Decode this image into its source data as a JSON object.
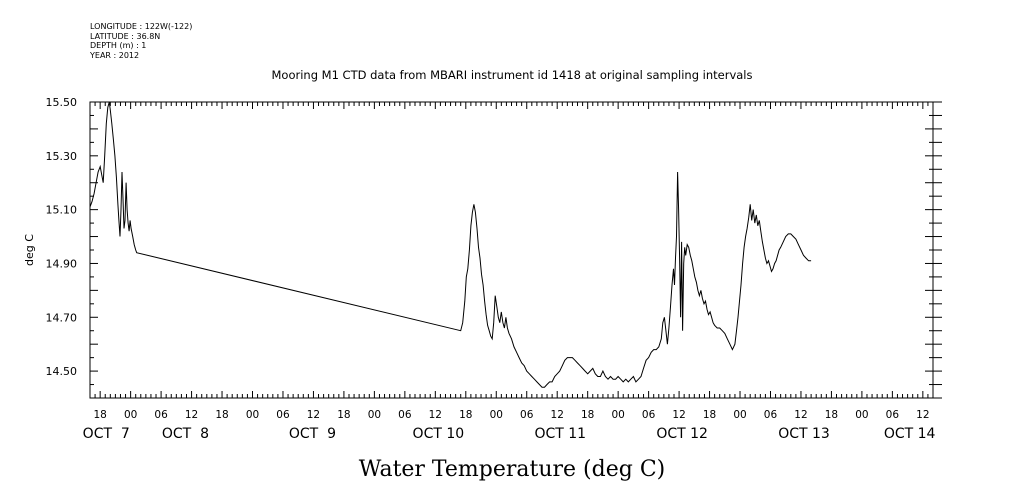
{
  "metadata": [
    {
      "key": "longitude",
      "text": "LONGITUDE : 122W(-122)"
    },
    {
      "key": "latitude",
      "text": "LATITUDE : 36.8N"
    },
    {
      "key": "depth",
      "text": "DEPTH (m) : 1"
    },
    {
      "key": "year",
      "text": "YEAR : 2012"
    }
  ],
  "chart_data": {
    "type": "line",
    "title": "Mooring M1 CTD data from MBARI instrument id 1418 at original sampling intervals",
    "xlabel": "Water Temperature (deg C)",
    "ylabel": "deg C",
    "ylim": [
      14.4,
      15.5
    ],
    "y_ticks": [
      {
        "value": 14.5,
        "label": "14.50"
      },
      {
        "value": 14.7,
        "label": "14.70"
      },
      {
        "value": 14.9,
        "label": "14.90"
      },
      {
        "value": 15.1,
        "label": "15.10"
      },
      {
        "value": 15.3,
        "label": "15.30"
      },
      {
        "value": 15.5,
        "label": "15.50"
      }
    ],
    "x_unit": "hours since Oct 7 2012 00:00",
    "xlim": [
      16,
      182
    ],
    "x_hour_ticks": [
      {
        "x": 18,
        "label": "18"
      },
      {
        "x": 24,
        "label": "00"
      },
      {
        "x": 30,
        "label": "06"
      },
      {
        "x": 36,
        "label": "12"
      },
      {
        "x": 42,
        "label": "18"
      },
      {
        "x": 48,
        "label": "00"
      },
      {
        "x": 54,
        "label": "06"
      },
      {
        "x": 60,
        "label": "12"
      },
      {
        "x": 66,
        "label": "18"
      },
      {
        "x": 72,
        "label": "00"
      },
      {
        "x": 78,
        "label": "06"
      },
      {
        "x": 84,
        "label": "12"
      },
      {
        "x": 90,
        "label": "18"
      },
      {
        "x": 96,
        "label": "00"
      },
      {
        "x": 102,
        "label": "06"
      },
      {
        "x": 108,
        "label": "12"
      },
      {
        "x": 114,
        "label": "18"
      },
      {
        "x": 120,
        "label": "00"
      },
      {
        "x": 126,
        "label": "06"
      },
      {
        "x": 132,
        "label": "12"
      },
      {
        "x": 138,
        "label": "18"
      },
      {
        "x": 144,
        "label": "00"
      },
      {
        "x": 150,
        "label": "06"
      },
      {
        "x": 156,
        "label": "12"
      },
      {
        "x": 162,
        "label": "18"
      },
      {
        "x": 168,
        "label": "00"
      },
      {
        "x": 174,
        "label": "06"
      },
      {
        "x": 180,
        "label": "12"
      }
    ],
    "x_day_labels": [
      {
        "x": 19.2,
        "label": "OCT  7"
      },
      {
        "x": 34.8,
        "label": "OCT  8"
      },
      {
        "x": 59.8,
        "label": "OCT  9"
      },
      {
        "x": 84.6,
        "label": "OCT 10"
      },
      {
        "x": 108.6,
        "label": "OCT 11"
      },
      {
        "x": 132.6,
        "label": "OCT 12"
      },
      {
        "x": 156.6,
        "label": "OCT 13"
      },
      {
        "x": 177.4,
        "label": "OCT 14"
      }
    ],
    "grid": false,
    "series": [
      {
        "color": "#000000",
        "points": [
          [
            16.0,
            15.11
          ],
          [
            16.4,
            15.13
          ],
          [
            16.8,
            15.16
          ],
          [
            17.2,
            15.2
          ],
          [
            17.6,
            15.24
          ],
          [
            18.0,
            15.26
          ],
          [
            18.3,
            15.23
          ],
          [
            18.6,
            15.2
          ],
          [
            18.9,
            15.3
          ],
          [
            19.2,
            15.42
          ],
          [
            19.5,
            15.48
          ],
          [
            19.8,
            15.5
          ],
          [
            20.0,
            15.47
          ],
          [
            20.3,
            15.42
          ],
          [
            20.6,
            15.36
          ],
          [
            20.9,
            15.3
          ],
          [
            21.2,
            15.22
          ],
          [
            21.5,
            15.12
          ],
          [
            21.7,
            15.06
          ],
          [
            21.9,
            15.0
          ],
          [
            22.1,
            15.1
          ],
          [
            22.3,
            15.24
          ],
          [
            22.5,
            15.14
          ],
          [
            22.7,
            15.03
          ],
          [
            22.9,
            15.06
          ],
          [
            23.1,
            15.2
          ],
          [
            23.3,
            15.1
          ],
          [
            23.5,
            15.05
          ],
          [
            23.7,
            15.02
          ],
          [
            23.9,
            15.06
          ],
          [
            24.1,
            15.03
          ],
          [
            24.4,
            15.0
          ],
          [
            24.7,
            14.97
          ],
          [
            25.0,
            14.95
          ],
          [
            25.2,
            14.94
          ],
          [
            89.0,
            14.65
          ],
          [
            89.4,
            14.68
          ],
          [
            89.8,
            14.76
          ],
          [
            90.1,
            14.85
          ],
          [
            90.4,
            14.88
          ],
          [
            90.7,
            14.95
          ],
          [
            91.0,
            15.04
          ],
          [
            91.3,
            15.09
          ],
          [
            91.6,
            15.12
          ],
          [
            91.9,
            15.09
          ],
          [
            92.2,
            15.03
          ],
          [
            92.5,
            14.96
          ],
          [
            92.8,
            14.92
          ],
          [
            93.1,
            14.86
          ],
          [
            93.4,
            14.82
          ],
          [
            93.7,
            14.76
          ],
          [
            94.0,
            14.71
          ],
          [
            94.3,
            14.67
          ],
          [
            94.6,
            14.65
          ],
          [
            94.9,
            14.63
          ],
          [
            95.2,
            14.62
          ],
          [
            95.5,
            14.68
          ],
          [
            95.8,
            14.78
          ],
          [
            96.1,
            14.74
          ],
          [
            96.4,
            14.7
          ],
          [
            96.7,
            14.68
          ],
          [
            97.0,
            14.72
          ],
          [
            97.3,
            14.68
          ],
          [
            97.6,
            14.66
          ],
          [
            97.9,
            14.7
          ],
          [
            98.2,
            14.66
          ],
          [
            98.5,
            14.64
          ],
          [
            99.0,
            14.62
          ],
          [
            99.5,
            14.59
          ],
          [
            100.0,
            14.57
          ],
          [
            100.5,
            14.55
          ],
          [
            101.0,
            14.53
          ],
          [
            101.5,
            14.52
          ],
          [
            102.0,
            14.5
          ],
          [
            102.5,
            14.49
          ],
          [
            103.0,
            14.48
          ],
          [
            103.5,
            14.47
          ],
          [
            104.0,
            14.46
          ],
          [
            104.5,
            14.45
          ],
          [
            105.0,
            14.44
          ],
          [
            105.5,
            14.44
          ],
          [
            106.0,
            14.45
          ],
          [
            106.5,
            14.46
          ],
          [
            107.0,
            14.46
          ],
          [
            107.5,
            14.48
          ],
          [
            108.0,
            14.49
          ],
          [
            108.5,
            14.5
          ],
          [
            109.0,
            14.52
          ],
          [
            109.5,
            14.54
          ],
          [
            110.0,
            14.55
          ],
          [
            110.5,
            14.55
          ],
          [
            111.0,
            14.55
          ],
          [
            111.5,
            14.54
          ],
          [
            112.0,
            14.53
          ],
          [
            112.5,
            14.52
          ],
          [
            113.0,
            14.51
          ],
          [
            113.5,
            14.5
          ],
          [
            114.0,
            14.49
          ],
          [
            114.5,
            14.5
          ],
          [
            115.0,
            14.51
          ],
          [
            115.5,
            14.49
          ],
          [
            116.0,
            14.48
          ],
          [
            116.5,
            14.48
          ],
          [
            117.0,
            14.5
          ],
          [
            117.5,
            14.48
          ],
          [
            118.0,
            14.47
          ],
          [
            118.5,
            14.48
          ],
          [
            119.0,
            14.47
          ],
          [
            119.5,
            14.47
          ],
          [
            120.0,
            14.48
          ],
          [
            120.5,
            14.47
          ],
          [
            121.0,
            14.46
          ],
          [
            121.5,
            14.47
          ],
          [
            122.0,
            14.46
          ],
          [
            122.5,
            14.47
          ],
          [
            123.0,
            14.48
          ],
          [
            123.5,
            14.46
          ],
          [
            124.0,
            14.47
          ],
          [
            124.5,
            14.48
          ],
          [
            125.0,
            14.51
          ],
          [
            125.5,
            14.54
          ],
          [
            126.0,
            14.55
          ],
          [
            126.5,
            14.57
          ],
          [
            127.0,
            14.58
          ],
          [
            127.5,
            14.58
          ],
          [
            128.0,
            14.59
          ],
          [
            128.5,
            14.62
          ],
          [
            128.8,
            14.68
          ],
          [
            129.1,
            14.7
          ],
          [
            129.4,
            14.65
          ],
          [
            129.7,
            14.6
          ],
          [
            130.0,
            14.66
          ],
          [
            130.3,
            14.74
          ],
          [
            130.6,
            14.82
          ],
          [
            130.9,
            14.88
          ],
          [
            131.1,
            14.82
          ],
          [
            131.3,
            14.92
          ],
          [
            131.5,
            15.0
          ],
          [
            131.7,
            15.24
          ],
          [
            131.9,
            15.1
          ],
          [
            132.1,
            14.92
          ],
          [
            132.3,
            14.7
          ],
          [
            132.5,
            14.98
          ],
          [
            132.7,
            14.65
          ],
          [
            132.9,
            14.9
          ],
          [
            133.1,
            14.96
          ],
          [
            133.3,
            14.93
          ],
          [
            133.6,
            14.97
          ],
          [
            133.9,
            14.96
          ],
          [
            134.2,
            14.93
          ],
          [
            134.5,
            14.91
          ],
          [
            134.8,
            14.88
          ],
          [
            135.1,
            14.85
          ],
          [
            135.4,
            14.83
          ],
          [
            135.7,
            14.8
          ],
          [
            136.0,
            14.78
          ],
          [
            136.3,
            14.8
          ],
          [
            136.6,
            14.77
          ],
          [
            136.9,
            14.75
          ],
          [
            137.2,
            14.76
          ],
          [
            137.5,
            14.73
          ],
          [
            137.8,
            14.71
          ],
          [
            138.1,
            14.72
          ],
          [
            138.4,
            14.7
          ],
          [
            138.7,
            14.68
          ],
          [
            139.0,
            14.67
          ],
          [
            139.5,
            14.66
          ],
          [
            140.0,
            14.66
          ],
          [
            140.5,
            14.65
          ],
          [
            141.0,
            14.64
          ],
          [
            141.5,
            14.62
          ],
          [
            142.0,
            14.6
          ],
          [
            142.5,
            14.58
          ],
          [
            143.0,
            14.6
          ],
          [
            143.3,
            14.65
          ],
          [
            143.6,
            14.7
          ],
          [
            143.9,
            14.76
          ],
          [
            144.2,
            14.82
          ],
          [
            144.5,
            14.9
          ],
          [
            144.8,
            14.96
          ],
          [
            145.1,
            15.0
          ],
          [
            145.4,
            15.03
          ],
          [
            145.7,
            15.07
          ],
          [
            146.0,
            15.12
          ],
          [
            146.3,
            15.06
          ],
          [
            146.6,
            15.1
          ],
          [
            146.9,
            15.05
          ],
          [
            147.2,
            15.08
          ],
          [
            147.5,
            15.04
          ],
          [
            147.8,
            15.06
          ],
          [
            148.1,
            15.02
          ],
          [
            148.4,
            14.98
          ],
          [
            148.7,
            14.95
          ],
          [
            149.0,
            14.92
          ],
          [
            149.3,
            14.9
          ],
          [
            149.6,
            14.91
          ],
          [
            149.9,
            14.89
          ],
          [
            150.2,
            14.87
          ],
          [
            150.5,
            14.88
          ],
          [
            150.8,
            14.9
          ],
          [
            151.1,
            14.91
          ],
          [
            151.4,
            14.93
          ],
          [
            151.7,
            14.95
          ],
          [
            152.0,
            14.96
          ],
          [
            152.5,
            14.98
          ],
          [
            153.0,
            15.0
          ],
          [
            153.5,
            15.01
          ],
          [
            154.0,
            15.01
          ],
          [
            154.5,
            15.0
          ],
          [
            155.0,
            14.99
          ],
          [
            155.5,
            14.97
          ],
          [
            156.0,
            14.95
          ],
          [
            156.5,
            14.93
          ],
          [
            157.0,
            14.92
          ],
          [
            157.5,
            14.91
          ],
          [
            158.0,
            14.91
          ]
        ]
      }
    ]
  }
}
